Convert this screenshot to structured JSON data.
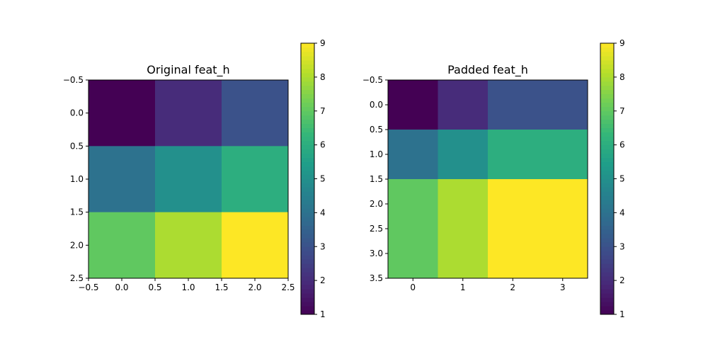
{
  "chart_data": [
    {
      "type": "heatmap",
      "title": "Original feat_h",
      "z": [
        [
          1,
          2,
          3
        ],
        [
          4,
          5,
          6
        ],
        [
          7,
          8,
          9
        ]
      ],
      "xlim": [
        -0.5,
        2.5
      ],
      "ylim": [
        2.5,
        -0.5
      ],
      "x_ticks": [
        "−0.5",
        "0.0",
        "0.5",
        "1.0",
        "1.5",
        "2.0",
        "2.5"
      ],
      "y_ticks": [
        "−0.5",
        "0.0",
        "0.5",
        "1.0",
        "1.5",
        "2.0",
        "2.5"
      ],
      "colorbar": {
        "range": [
          1,
          9
        ],
        "ticks": [
          "1",
          "2",
          "3",
          "4",
          "5",
          "6",
          "7",
          "8",
          "9"
        ]
      },
      "colormap": "viridis",
      "grid": false
    },
    {
      "type": "heatmap",
      "title": "Padded feat_h",
      "z": [
        [
          1,
          2,
          3,
          3
        ],
        [
          4,
          5,
          6,
          6
        ],
        [
          7,
          8,
          9,
          9
        ],
        [
          7,
          8,
          9,
          9
        ]
      ],
      "xlim": [
        -0.5,
        3.5
      ],
      "ylim": [
        3.5,
        -0.5
      ],
      "x_ticks": [
        "0",
        "1",
        "2",
        "3"
      ],
      "y_ticks": [
        "−0.5",
        "0.0",
        "0.5",
        "1.0",
        "1.5",
        "2.0",
        "2.5",
        "3.0",
        "3.5"
      ],
      "colorbar": {
        "range": [
          1,
          9
        ],
        "ticks": [
          "1",
          "2",
          "3",
          "4",
          "5",
          "6",
          "7",
          "8",
          "9"
        ]
      },
      "colormap": "viridis",
      "grid": false
    }
  ]
}
